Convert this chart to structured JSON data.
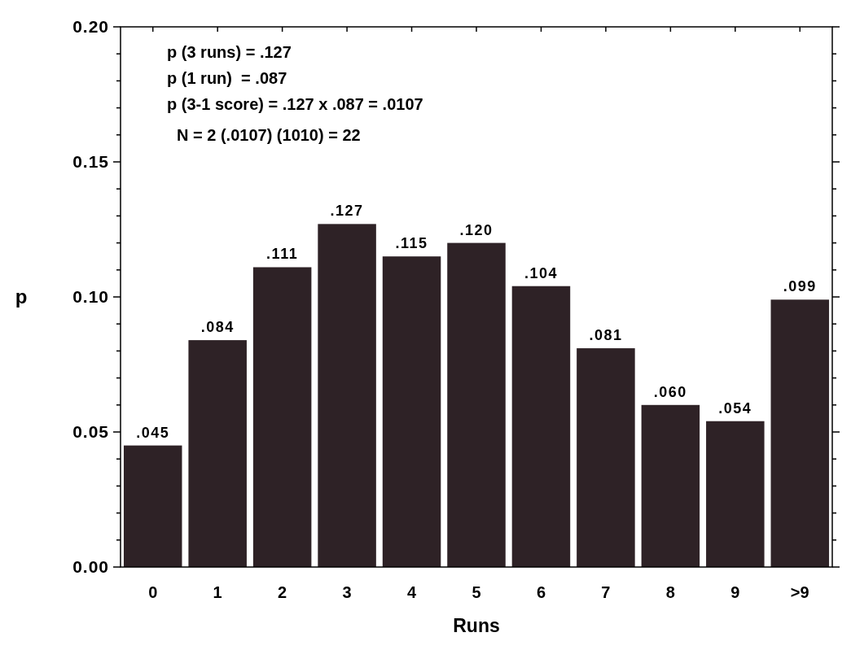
{
  "chart_data": {
    "type": "bar",
    "xlabel": "Runs",
    "ylabel": "p",
    "categories": [
      "0",
      "1",
      "2",
      "3",
      "4",
      "5",
      "6",
      "7",
      "8",
      "9",
      ">9"
    ],
    "values": [
      0.045,
      0.084,
      0.111,
      0.127,
      0.115,
      0.12,
      0.104,
      0.081,
      0.06,
      0.054,
      0.099
    ],
    "value_labels": [
      ".045",
      ".084",
      ".111",
      ".127",
      ".115",
      ".120",
      ".104",
      ".081",
      ".060",
      ".054",
      ".099"
    ],
    "color": "#2e2226",
    "ylim": [
      0,
      0.2
    ],
    "yticks": [
      {
        "value": 0,
        "label": "0.00"
      },
      {
        "value": 0.01,
        "label": null
      },
      {
        "value": 0.02,
        "label": null
      },
      {
        "value": 0.03,
        "label": null
      },
      {
        "value": 0.04,
        "label": null
      },
      {
        "value": 0.05,
        "label": "0.05"
      },
      {
        "value": 0.06,
        "label": null
      },
      {
        "value": 0.07,
        "label": null
      },
      {
        "value": 0.08,
        "label": null
      },
      {
        "value": 0.09,
        "label": null
      },
      {
        "value": 0.1,
        "label": "0.10"
      },
      {
        "value": 0.11,
        "label": null
      },
      {
        "value": 0.12,
        "label": null
      },
      {
        "value": 0.13,
        "label": null
      },
      {
        "value": 0.14,
        "label": null
      },
      {
        "value": 0.15,
        "label": "0.15"
      },
      {
        "value": 0.16,
        "label": null
      },
      {
        "value": 0.17,
        "label": null
      },
      {
        "value": 0.18,
        "label": null
      },
      {
        "value": 0.19,
        "label": null
      },
      {
        "value": 0.2,
        "label": "0.20"
      }
    ],
    "annotations": [
      "p (3 runs) = .127",
      "p (1 run)  = .087",
      "p (3-1 score) = .127 x .087 = .0107",
      "N = 2 (.0107) (1010) = 22"
    ],
    "grid": false
  }
}
